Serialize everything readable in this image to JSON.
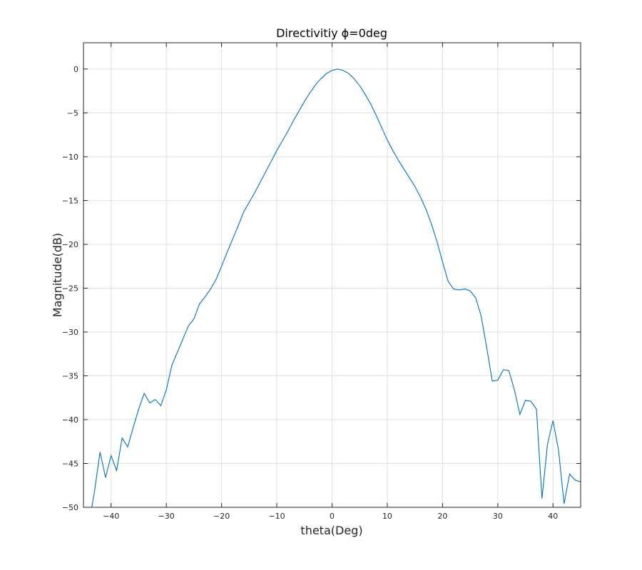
{
  "chart_data": {
    "type": "line",
    "title": "Directivitiy ϕ=0deg",
    "xlabel": "theta(Deg)",
    "ylabel": "Magnitude(dB)",
    "xlim": [
      -45,
      45
    ],
    "ylim": [
      -50,
      3
    ],
    "xticks": [
      -40,
      -30,
      -20,
      -10,
      0,
      10,
      20,
      30,
      40
    ],
    "xtick_labels": [
      "−40",
      "−30",
      "−20",
      "−10",
      "0",
      "10",
      "20",
      "30",
      "40"
    ],
    "yticks": [
      0,
      -5,
      -10,
      -15,
      -20,
      -25,
      -30,
      -35,
      -40,
      -45,
      -50
    ],
    "ytick_labels": [
      "0",
      "−5",
      "−10",
      "−15",
      "−20",
      "−25",
      "−30",
      "−35",
      "−40",
      "−45",
      "−50"
    ],
    "grid": true,
    "color": "#0072BD",
    "series": [
      {
        "x": [
          -43.5,
          -43,
          -42,
          -41,
          -40,
          -39,
          -38,
          -37,
          -36,
          -35,
          -34,
          -33,
          -32,
          -31,
          -30,
          -29,
          -28,
          -27,
          -26,
          -25,
          -24,
          -23,
          -22,
          -21,
          -20,
          -19,
          -18,
          -17,
          -16,
          -15,
          -14,
          -13,
          -12,
          -11,
          -10,
          -9,
          -8,
          -7,
          -6,
          -5,
          -4,
          -3,
          -2,
          -1,
          0,
          1,
          2,
          3,
          4,
          5,
          6,
          7,
          8,
          9,
          10,
          11,
          12,
          13,
          14,
          15,
          16,
          17,
          18,
          19,
          20,
          21,
          22,
          23,
          24,
          25,
          26,
          27,
          28,
          29,
          30,
          31,
          32,
          33,
          34,
          35,
          36,
          37,
          38,
          39,
          40,
          41,
          42,
          43,
          44,
          45
        ],
        "y": [
          -50,
          -48.2,
          -43.7,
          -46.6,
          -44.1,
          -45.8,
          -42.1,
          -43.1,
          -40.9,
          -38.8,
          -37.0,
          -38.1,
          -37.7,
          -38.4,
          -36.6,
          -33.8,
          -32.3,
          -30.8,
          -29.3,
          -28.5,
          -26.8,
          -26.0,
          -25.1,
          -24.0,
          -22.5,
          -20.9,
          -19.4,
          -17.9,
          -16.3,
          -15.2,
          -14.1,
          -12.9,
          -11.7,
          -10.5,
          -9.3,
          -8.2,
          -7.1,
          -5.9,
          -4.8,
          -3.7,
          -2.7,
          -1.8,
          -1.1,
          -0.5,
          -0.15,
          0,
          -0.15,
          -0.5,
          -1.1,
          -1.9,
          -2.9,
          -4.0,
          -5.3,
          -6.7,
          -8.1,
          -9.3,
          -10.4,
          -11.4,
          -12.4,
          -13.4,
          -14.6,
          -16.0,
          -17.7,
          -19.7,
          -22.0,
          -24.2,
          -25.1,
          -25.2,
          -25.1,
          -25.3,
          -26.1,
          -28.2,
          -31.8,
          -35.6,
          -35.5,
          -34.3,
          -34.4,
          -36.6,
          -39.4,
          -37.8,
          -37.9,
          -38.8,
          -49.0,
          -42.8,
          -40.1,
          -43.5,
          -49.6,
          -46.2,
          -46.9,
          -47.1
        ]
      }
    ]
  }
}
